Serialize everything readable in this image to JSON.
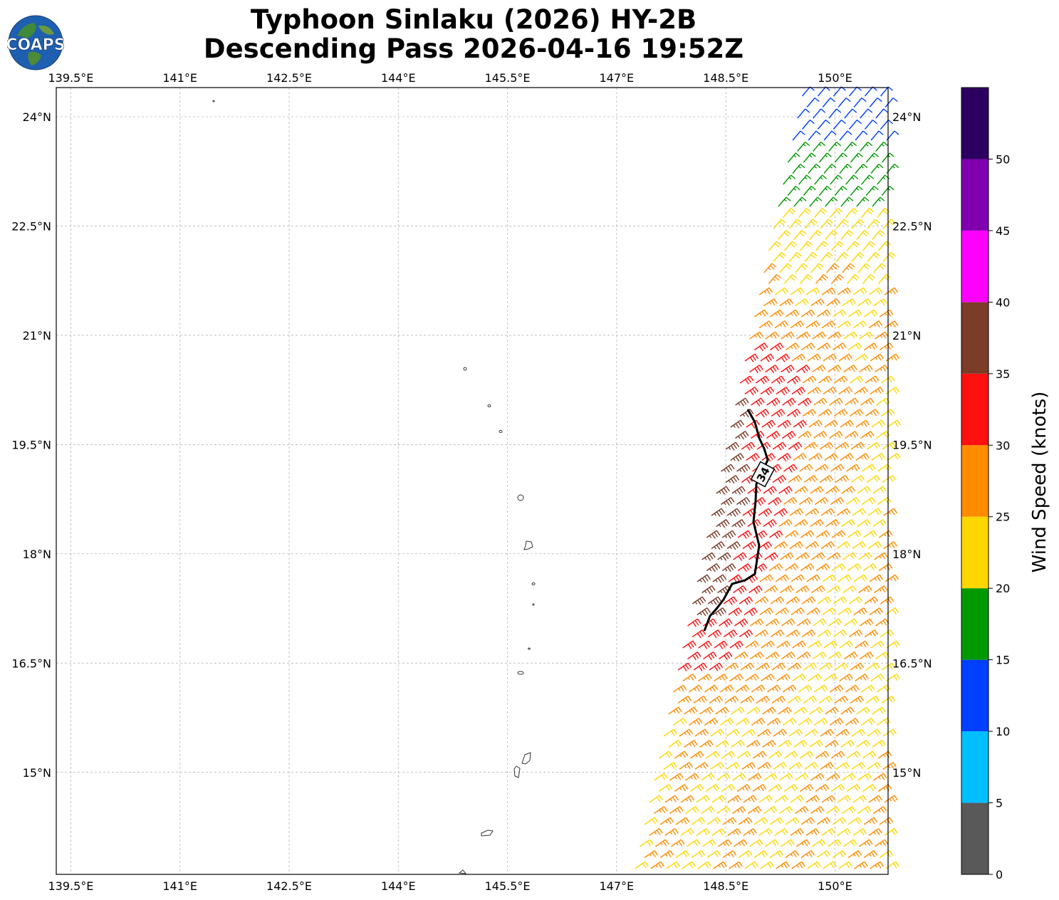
{
  "title": {
    "line1": "Typhoon Sinlaku (2026) HY-2B",
    "line2": "Descending Pass 2026-04-16 19:52Z"
  },
  "logo": {
    "text": "COAPS",
    "icon": "globe-logo-icon"
  },
  "map": {
    "lon_ticks": [
      "139.5°E",
      "141°E",
      "142.5°E",
      "144°E",
      "145.5°E",
      "147°E",
      "148.5°E",
      "150°E"
    ],
    "lat_ticks": [
      "24°N",
      "22.5°N",
      "21°N",
      "19.5°N",
      "18°N",
      "16.5°N",
      "15°N"
    ],
    "lon_range": [
      139.3,
      150.73
    ],
    "lat_range": [
      13.6,
      24.4
    ],
    "gridlines": true,
    "contour_label": "34"
  },
  "colorbar": {
    "label": "Wind Speed (knots)",
    "tick_labels": [
      "0",
      "5",
      "10",
      "15",
      "20",
      "25",
      "30",
      "35",
      "40",
      "45",
      "50"
    ],
    "bins": [
      {
        "min": 0,
        "max": 5,
        "color": "#595959"
      },
      {
        "min": 5,
        "max": 10,
        "color": "#00bfff"
      },
      {
        "min": 10,
        "max": 15,
        "color": "#0040ff"
      },
      {
        "min": 15,
        "max": 20,
        "color": "#009900"
      },
      {
        "min": 20,
        "max": 25,
        "color": "#ffd700"
      },
      {
        "min": 25,
        "max": 30,
        "color": "#ff8c00"
      },
      {
        "min": 30,
        "max": 35,
        "color": "#ff1010"
      },
      {
        "min": 35,
        "max": 40,
        "color": "#7b3c28"
      },
      {
        "min": 40,
        "max": 45,
        "color": "#ff00ff"
      },
      {
        "min": 45,
        "max": 50,
        "color": "#8000b0"
      },
      {
        "min": 50,
        "max": 55,
        "color": "#2c0060"
      }
    ]
  }
}
